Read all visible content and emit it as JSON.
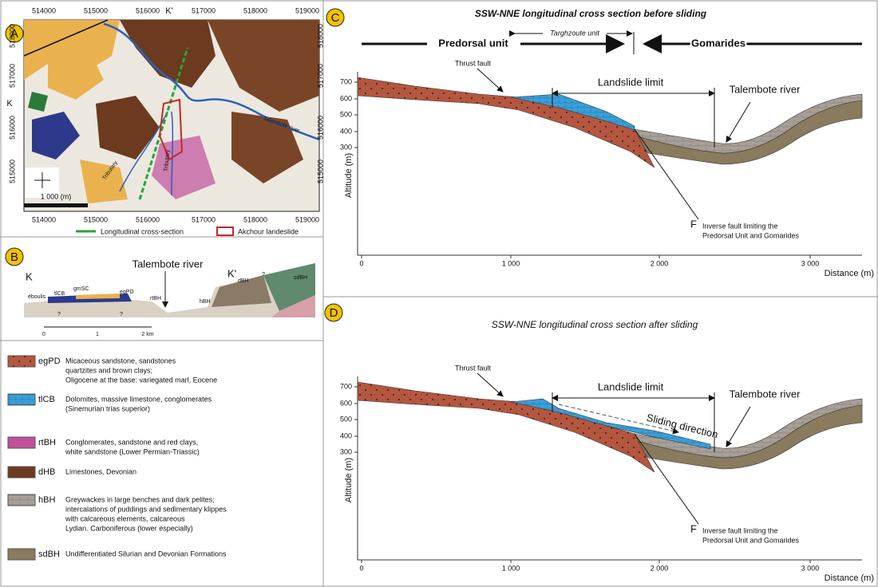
{
  "panel_a": {
    "label": "A",
    "top_ticks": [
      "514000",
      "515000",
      "516000",
      "517000",
      "518000",
      "519000"
    ],
    "section_top": "K'",
    "left_ticks": [
      "518000",
      "517000",
      "516000",
      "515000"
    ],
    "section_left": "K",
    "right_ticks": [
      "518000",
      "517000",
      "516000",
      "515000"
    ],
    "bottom_ticks": [
      "514000",
      "515000",
      "516000",
      "517000",
      "518000",
      "519000"
    ],
    "river": "Talembote river",
    "tributaries": [
      "Tributary",
      "Tributary"
    ],
    "scale": "1 000 (m)",
    "legend": [
      "Longitudinal cross-section",
      "Akchour landeslide"
    ]
  },
  "panel_b": {
    "label": "B",
    "section_start": "K",
    "section_end": "K'",
    "river": "Talembote river",
    "units": [
      "éboulis",
      "tlCB",
      "gmSC",
      "egPD",
      "rtBH",
      "hBH",
      "dBH",
      "sdBH"
    ],
    "queries": [
      "?",
      "?",
      "?"
    ],
    "scale": [
      "0",
      "1",
      "2 km"
    ]
  },
  "legend": {
    "items": [
      {
        "code": "egPD",
        "text": [
          "Micaceous sandstone, sandstones",
          "quartzites and brown clays;",
          "Oligocene at the base: variegated marl, Eocene"
        ]
      },
      {
        "code": "tlCB",
        "text": [
          "Dolomites, massive limestone, conglomerates",
          "(Sinemurian trias  superior)"
        ]
      },
      {
        "code": "rtBH",
        "text": [
          "Conglomerates, sandstone and red clays,",
          "white sandstone (Lower Permian-Triassic)"
        ]
      },
      {
        "code": "dHB",
        "text": [
          "Limestones, Devonian"
        ]
      },
      {
        "code": "hBH",
        "text": [
          "Greywackes in large benches and dark pelites;",
          "intercalations of puddings and sedimentary klippes",
          " with calcareous elements, calcareous",
          "Lydian. Carboniferous (lower especially)"
        ]
      },
      {
        "code": "sdBH",
        "text": [
          "Undifferentiated Silurian and Devonian Formations"
        ]
      }
    ]
  },
  "panel_c": {
    "label": "C",
    "title": "SSW-NNE longitudinal cross section  before sliding",
    "predorsal": "Predorsal unit",
    "targhzoute": "Targhzoute unit",
    "gomarides": "Gomarides",
    "thrust_fault": "Thrust fault",
    "landslide_limit": "Landslide limit",
    "river": "Talembote river",
    "fault_label": "F",
    "fault_text": [
      "Inverse fault limiting the",
      "Predorsal Unit and Gomarides"
    ],
    "y_label": "Altitude (m)",
    "y_ticks": [
      "700",
      "600",
      "500",
      "400",
      "300"
    ],
    "x_ticks": [
      "0",
      "1 000",
      "2 000",
      "3 000"
    ],
    "x_label": "Distance (m)"
  },
  "panel_d": {
    "label": "D",
    "title": "SSW-NNE longitudinal cross section  after sliding",
    "thrust_fault": "Thrust fault",
    "landslide_limit": "Landslide limit",
    "sliding": "Sliding direction",
    "river": "Talembote river",
    "fault_label": "F",
    "fault_text": [
      "Inverse fault limiting the",
      "Predorsal Unit and Gomarides"
    ],
    "y_label": "Altitude (m)",
    "y_ticks": [
      "700",
      "600",
      "500",
      "400",
      "300"
    ],
    "x_ticks": [
      "0",
      "1 000",
      "2 000",
      "3 000"
    ],
    "x_label": "Distance (m)"
  }
}
